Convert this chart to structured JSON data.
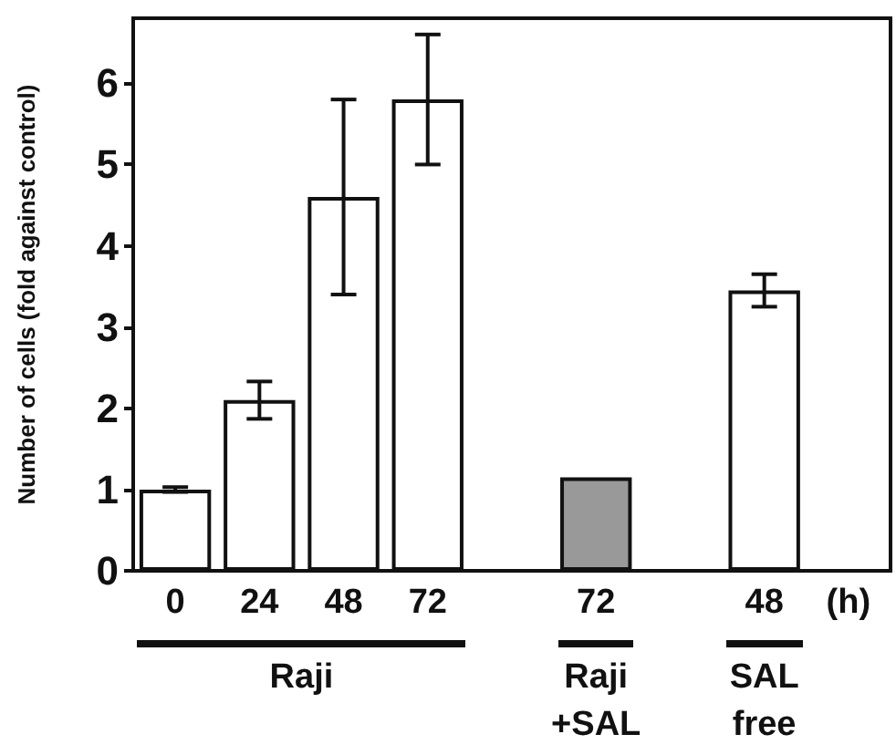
{
  "chart_data": {
    "type": "bar",
    "ylabel": "Number of cells (fold against control)",
    "xlabel": "(h)",
    "categories": [
      "0",
      "24",
      "48",
      "72",
      null,
      "72",
      null,
      "48",
      null
    ],
    "values": [
      1.0,
      2.1,
      4.6,
      5.8,
      null,
      1.15,
      null,
      3.45,
      null
    ],
    "colors": [
      "#ffffff",
      "#ffffff",
      "#ffffff",
      "#ffffff",
      "#ffffff",
      "#999999",
      "#ffffff",
      "#ffffff",
      "#ffffff"
    ],
    "errors": [
      0.03,
      0.23,
      1.2,
      0.8,
      null,
      null,
      null,
      0.2,
      null
    ],
    "ylim": [
      0,
      6.8
    ],
    "yticks": [
      0,
      1,
      2,
      3,
      4,
      5,
      6
    ],
    "grid": false,
    "annotations": [
      "Raji",
      "Raji +SAL",
      "SAL free"
    ]
  }
}
